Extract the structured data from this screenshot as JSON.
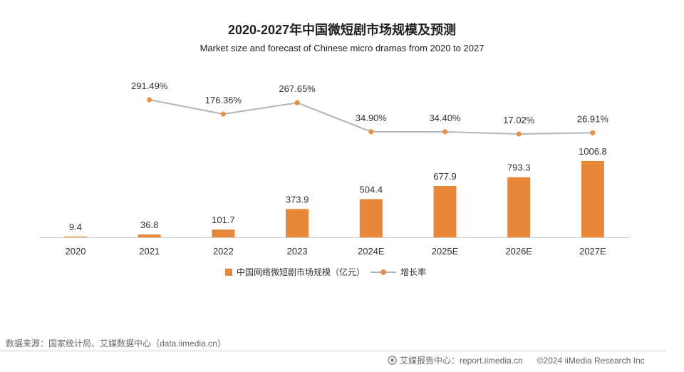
{
  "chart_data": {
    "type": "bar",
    "title": "2020-2027年中国微短剧市场规模及预测",
    "subtitle": "Market size and forecast of Chinese micro dramas from 2020 to 2027",
    "categories": [
      "2020",
      "2021",
      "2022",
      "2023",
      "2024E",
      "2025E",
      "2026E",
      "2027E"
    ],
    "series": [
      {
        "name": "中国网络微短剧市场规模（亿元）",
        "type": "bar",
        "values": [
          9.4,
          36.8,
          101.7,
          373.9,
          504.4,
          677.9,
          793.3,
          1006.8
        ],
        "color": "#e8873a"
      },
      {
        "name": "增长率",
        "type": "line",
        "values": [
          null,
          291.49,
          176.36,
          267.65,
          34.9,
          34.4,
          17.02,
          26.91
        ],
        "unit": "%",
        "color": "#b3b3b3",
        "marker_color": "#e8914a"
      }
    ],
    "xlabel": "",
    "ylabel": "",
    "grid": false,
    "legend": "bottom"
  },
  "source": "数据来源：国家统计局、艾媒数据中心（data.iimedia.cn）",
  "footer": {
    "logo_icon": "iimedia-logo-icon",
    "report_center": "艾媒报告中心：report.iimedia.cn",
    "copyright": "©2024  iiMedia Research Inc"
  }
}
